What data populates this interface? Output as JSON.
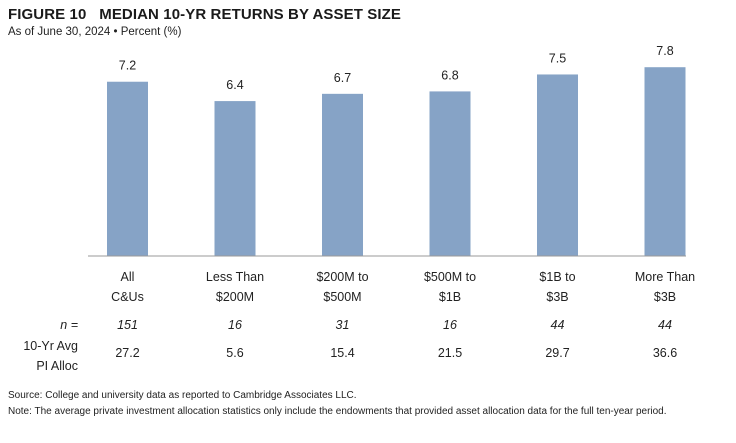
{
  "figure": {
    "title": "FIGURE 10   MEDIAN 10-YR RETURNS BY ASSET SIZE",
    "subtitle": "As of June 30, 2024 • Percent (%)"
  },
  "chart_data": {
    "type": "bar",
    "categories": [
      [
        "All",
        "C&Us"
      ],
      [
        "Less Than",
        "$200M"
      ],
      [
        "$200M to",
        "$500M"
      ],
      [
        "$500M to",
        "$1B"
      ],
      [
        "$1B to",
        "$3B"
      ],
      [
        "More Than",
        "$3B"
      ]
    ],
    "values": [
      7.2,
      6.4,
      6.7,
      6.8,
      7.5,
      7.8
    ],
    "value_labels": [
      "7.2",
      "6.4",
      "6.7",
      "6.8",
      "7.5",
      "7.8"
    ],
    "ylim": [
      0,
      8.8
    ],
    "grid": false,
    "bar_color": "#86a3c6"
  },
  "stats": {
    "n_label": "n =",
    "n_values": [
      "151",
      "16",
      "31",
      "16",
      "44",
      "44"
    ],
    "alloc_label": [
      "10-Yr Avg",
      "PI Alloc"
    ],
    "alloc_values": [
      "27.2",
      "5.6",
      "15.4",
      "21.5",
      "29.7",
      "36.6"
    ]
  },
  "footnotes": {
    "source": "Source: College and university data as reported to Cambridge Associates LLC.",
    "note": "Note: The average private investment allocation statistics only include the endowments that provided asset allocation data for the full ten-year period."
  }
}
